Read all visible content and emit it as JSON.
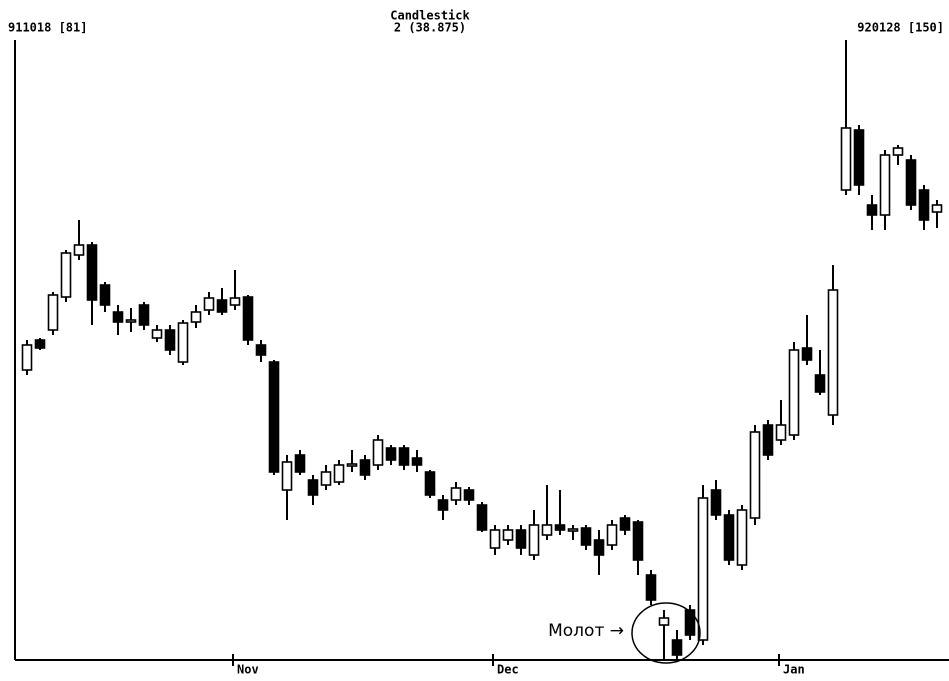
{
  "chart_data": {
    "type": "candlestick",
    "title": "Candlestick",
    "subtitle": "2 (38.875)",
    "left_label": "911018 [81]",
    "right_label": "920128 [150]",
    "annotation": {
      "text": "Молот →",
      "index": 49
    },
    "categories": [
      null,
      null,
      null,
      null,
      null,
      null,
      null,
      null,
      null,
      null,
      null,
      null,
      null,
      null,
      null,
      null,
      "Nov",
      null,
      null,
      null,
      null,
      null,
      null,
      null,
      null,
      null,
      null,
      null,
      null,
      null,
      null,
      null,
      null,
      null,
      null,
      null,
      "Dec",
      null,
      null,
      null,
      null,
      null,
      null,
      null,
      null,
      null,
      null,
      null,
      null,
      null,
      null,
      null,
      null,
      null,
      null,
      null,
      null,
      null,
      "Jan",
      null,
      null,
      null,
      null,
      null,
      null,
      null,
      null,
      null,
      null,
      null,
      null
    ],
    "open": [
      290,
      320,
      330,
      363,
      405,
      415,
      375,
      348,
      338,
      355,
      322,
      330,
      298,
      338,
      350,
      360,
      355,
      363,
      315,
      298,
      170,
      205,
      180,
      175,
      178,
      195,
      200,
      195,
      212,
      212,
      202,
      188,
      160,
      160,
      170,
      155,
      112,
      120,
      130,
      105,
      125,
      135,
      130,
      132,
      120,
      115,
      142,
      138,
      85,
      35,
      20,
      50,
      20,
      170,
      145,
      95,
      142,
      235,
      220,
      225,
      312,
      285,
      245,
      470,
      530,
      455,
      445,
      505,
      500,
      470,
      448
    ],
    "high": [
      320,
      322,
      368,
      410,
      440,
      418,
      378,
      355,
      352,
      358,
      335,
      335,
      340,
      355,
      368,
      372,
      390,
      365,
      320,
      300,
      205,
      210,
      185,
      195,
      200,
      210,
      205,
      225,
      215,
      215,
      210,
      190,
      165,
      178,
      173,
      158,
      135,
      135,
      135,
      150,
      175,
      170,
      135,
      135,
      130,
      140,
      145,
      140,
      90,
      50,
      30,
      55,
      175,
      180,
      150,
      155,
      235,
      240,
      260,
      318,
      345,
      310,
      395,
      620,
      535,
      465,
      510,
      515,
      505,
      475,
      460
    ],
    "low": [
      285,
      310,
      325,
      358,
      400,
      335,
      348,
      325,
      328,
      330,
      318,
      305,
      295,
      332,
      345,
      345,
      350,
      315,
      298,
      185,
      140,
      185,
      155,
      170,
      175,
      188,
      180,
      190,
      195,
      190,
      188,
      162,
      140,
      155,
      155,
      128,
      105,
      115,
      105,
      100,
      120,
      125,
      120,
      110,
      85,
      110,
      125,
      85,
      55,
      0,
      0,
      20,
      15,
      140,
      95,
      90,
      135,
      200,
      215,
      220,
      295,
      265,
      235,
      465,
      465,
      430,
      430,
      495,
      450,
      430,
      432
    ],
    "close": [
      315,
      312,
      365,
      407,
      415,
      360,
      355,
      338,
      340,
      335,
      330,
      310,
      337,
      348,
      362,
      348,
      362,
      320,
      305,
      188,
      198,
      188,
      165,
      188,
      195,
      196,
      185,
      220,
      200,
      195,
      195,
      165,
      150,
      172,
      160,
      130,
      130,
      130,
      112,
      135,
      135,
      130,
      131,
      115,
      105,
      135,
      130,
      100,
      60,
      42,
      5,
      25,
      162,
      145,
      100,
      150,
      228,
      205,
      235,
      310,
      300,
      268,
      370,
      532,
      475,
      445,
      505,
      512,
      455,
      440,
      455
    ],
    "ylim": [
      0,
      640
    ]
  }
}
